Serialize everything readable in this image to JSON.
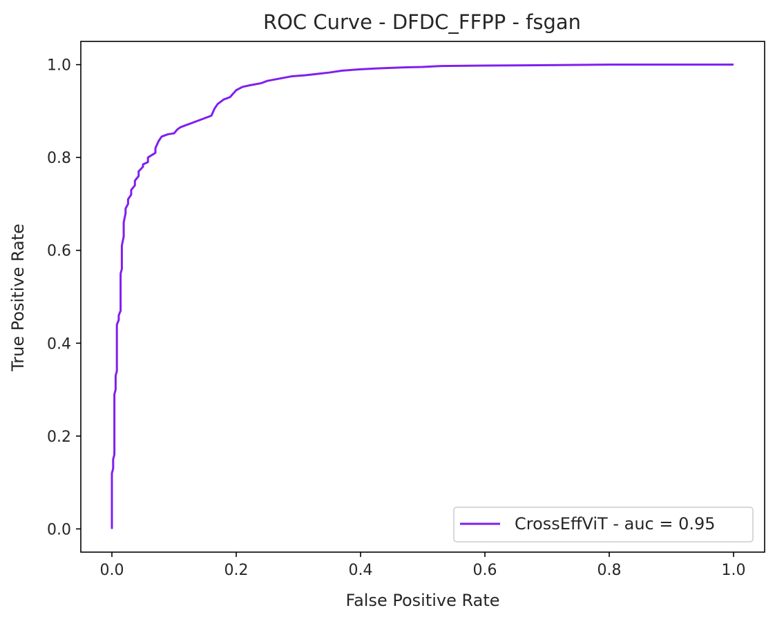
{
  "chart_data": {
    "type": "line",
    "title": "ROC Curve - DFDC_FFPP - fsgan",
    "xlabel": "False Positive Rate",
    "ylabel": "True Positive Rate",
    "xlim": [
      -0.05,
      1.05
    ],
    "ylim": [
      -0.05,
      1.05
    ],
    "x_ticks": [
      0.0,
      0.2,
      0.4,
      0.6,
      0.8,
      1.0
    ],
    "y_ticks": [
      0.0,
      0.2,
      0.4,
      0.6,
      0.8,
      1.0
    ],
    "x_tick_labels": [
      "0.0",
      "0.2",
      "0.4",
      "0.6",
      "0.8",
      "1.0"
    ],
    "y_tick_labels": [
      "0.0",
      "0.2",
      "0.4",
      "0.6",
      "0.8",
      "1.0"
    ],
    "grid": false,
    "legend_position": "lower right",
    "series": [
      {
        "name": "CrossEffViT - auc = 0.95",
        "color": "#7f1ff0",
        "x": [
          0.0,
          0.0,
          0.002,
          0.002,
          0.004,
          0.004,
          0.006,
          0.006,
          0.008,
          0.008,
          0.011,
          0.011,
          0.014,
          0.014,
          0.016,
          0.016,
          0.019,
          0.019,
          0.022,
          0.022,
          0.026,
          0.026,
          0.031,
          0.031,
          0.037,
          0.037,
          0.043,
          0.043,
          0.05,
          0.05,
          0.058,
          0.058,
          0.07,
          0.07,
          0.075,
          0.08,
          0.09,
          0.1,
          0.105,
          0.11,
          0.12,
          0.13,
          0.14,
          0.15,
          0.16,
          0.165,
          0.17,
          0.18,
          0.19,
          0.2,
          0.21,
          0.22,
          0.24,
          0.25,
          0.27,
          0.29,
          0.31,
          0.33,
          0.35,
          0.37,
          0.4,
          0.43,
          0.47,
          0.5,
          0.53,
          0.6,
          0.72,
          0.8,
          0.9,
          1.0
        ],
        "y": [
          0.0,
          0.12,
          0.13,
          0.15,
          0.16,
          0.29,
          0.3,
          0.33,
          0.34,
          0.44,
          0.45,
          0.46,
          0.47,
          0.55,
          0.56,
          0.61,
          0.63,
          0.66,
          0.68,
          0.69,
          0.7,
          0.71,
          0.72,
          0.73,
          0.74,
          0.75,
          0.76,
          0.77,
          0.78,
          0.785,
          0.79,
          0.8,
          0.81,
          0.82,
          0.835,
          0.845,
          0.85,
          0.852,
          0.86,
          0.865,
          0.87,
          0.875,
          0.88,
          0.885,
          0.89,
          0.905,
          0.915,
          0.925,
          0.93,
          0.945,
          0.952,
          0.955,
          0.96,
          0.965,
          0.97,
          0.975,
          0.977,
          0.98,
          0.983,
          0.987,
          0.99,
          0.992,
          0.994,
          0.995,
          0.997,
          0.998,
          0.999,
          1.0,
          1.0,
          1.0
        ]
      }
    ]
  }
}
